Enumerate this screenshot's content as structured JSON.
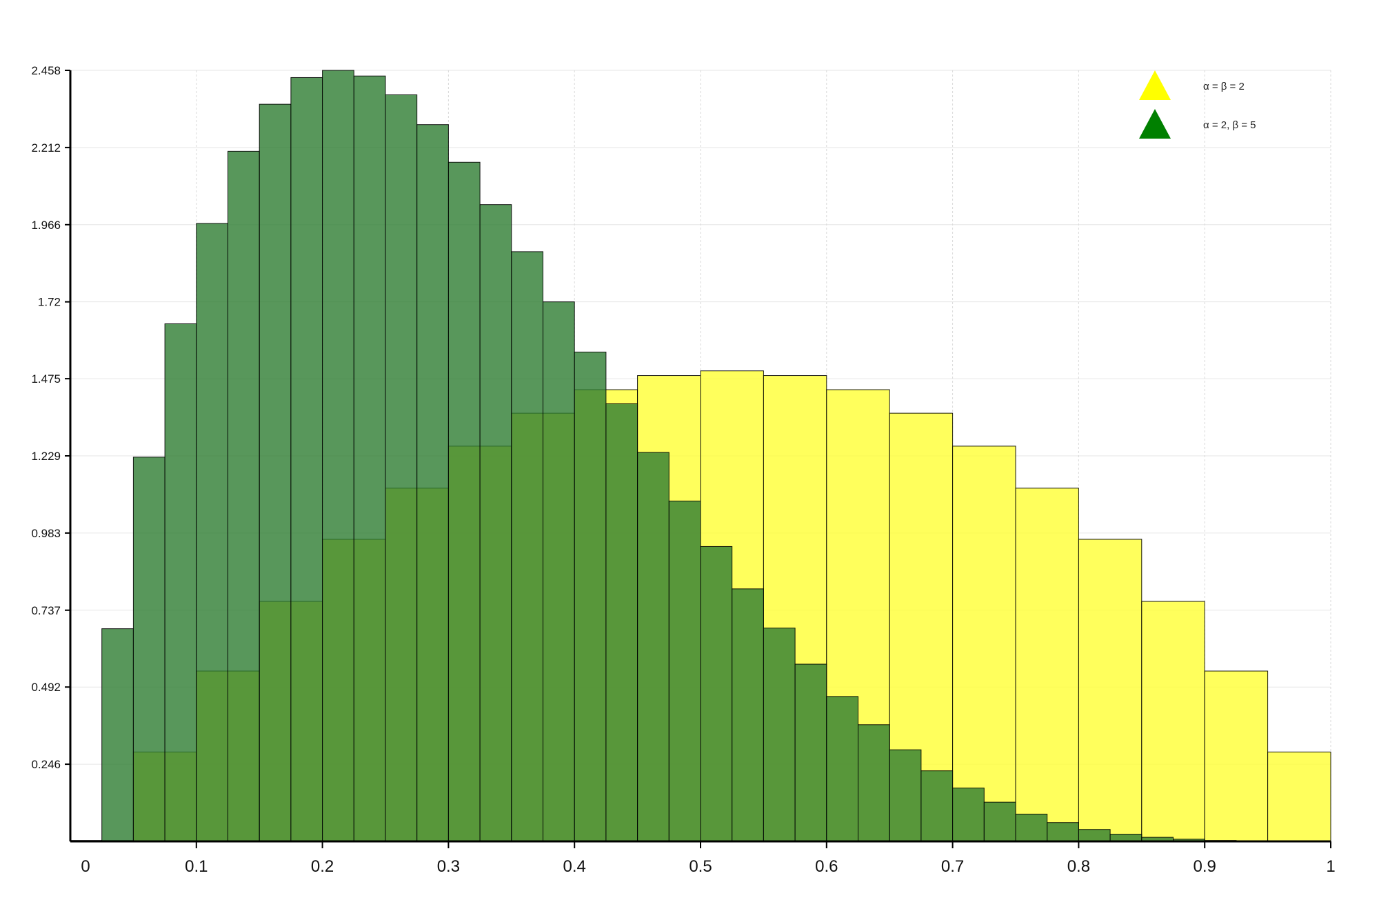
{
  "chart_data": {
    "type": "bar",
    "title": "",
    "xlabel": "",
    "ylabel": "",
    "xlim": [
      0,
      1
    ],
    "ylim": [
      0,
      2.458
    ],
    "grid": true,
    "legend_position": "top-right",
    "x_ticks": [
      {
        "value": 0,
        "label": "0"
      },
      {
        "value": 0.1,
        "label": "0.1"
      },
      {
        "value": 0.2,
        "label": "0.2"
      },
      {
        "value": 0.3,
        "label": "0.3"
      },
      {
        "value": 0.4,
        "label": "0.4"
      },
      {
        "value": 0.5,
        "label": "0.5"
      },
      {
        "value": 0.6,
        "label": "0.6"
      },
      {
        "value": 0.7,
        "label": "0.7"
      },
      {
        "value": 0.8,
        "label": "0.8"
      },
      {
        "value": 0.9,
        "label": "0.9"
      },
      {
        "value": 1,
        "label": "1"
      }
    ],
    "y_ticks": [
      {
        "value": 0.246,
        "label": "0.246"
      },
      {
        "value": 0.492,
        "label": "0.492"
      },
      {
        "value": 0.737,
        "label": "0.737"
      },
      {
        "value": 0.983,
        "label": "0.983"
      },
      {
        "value": 1.229,
        "label": "1.229"
      },
      {
        "value": 1.475,
        "label": "1.475"
      },
      {
        "value": 1.72,
        "label": "1.72"
      },
      {
        "value": 1.966,
        "label": "1.966"
      },
      {
        "value": 2.212,
        "label": "2.212"
      },
      {
        "value": 2.458,
        "label": "2.458"
      }
    ],
    "series": [
      {
        "name": "α = β = 2",
        "color": "#ffff33",
        "legend_color": "#ffff00",
        "opacity": 0.8,
        "bins": [
          {
            "x0": 0.0,
            "x1": 0.05,
            "y": 0.003
          },
          {
            "x0": 0.05,
            "x1": 0.1,
            "y": 0.285
          },
          {
            "x0": 0.1,
            "x1": 0.15,
            "y": 0.543
          },
          {
            "x0": 0.15,
            "x1": 0.2,
            "y": 0.765
          },
          {
            "x0": 0.2,
            "x1": 0.25,
            "y": 0.963
          },
          {
            "x0": 0.25,
            "x1": 0.3,
            "y": 1.126
          },
          {
            "x0": 0.3,
            "x1": 0.35,
            "y": 1.26
          },
          {
            "x0": 0.35,
            "x1": 0.4,
            "y": 1.365
          },
          {
            "x0": 0.4,
            "x1": 0.45,
            "y": 1.44
          },
          {
            "x0": 0.45,
            "x1": 0.5,
            "y": 1.485
          },
          {
            "x0": 0.5,
            "x1": 0.55,
            "y": 1.5
          },
          {
            "x0": 0.55,
            "x1": 0.6,
            "y": 1.485
          },
          {
            "x0": 0.6,
            "x1": 0.65,
            "y": 1.44
          },
          {
            "x0": 0.65,
            "x1": 0.7,
            "y": 1.365
          },
          {
            "x0": 0.7,
            "x1": 0.75,
            "y": 1.26
          },
          {
            "x0": 0.75,
            "x1": 0.8,
            "y": 1.126
          },
          {
            "x0": 0.8,
            "x1": 0.85,
            "y": 0.963
          },
          {
            "x0": 0.85,
            "x1": 0.9,
            "y": 0.765
          },
          {
            "x0": 0.9,
            "x1": 0.95,
            "y": 0.543
          },
          {
            "x0": 0.95,
            "x1": 1.0,
            "y": 0.285
          }
        ]
      },
      {
        "name": "α = 2, β = 5",
        "color": "#2e7d32",
        "legend_color": "#008000",
        "opacity": 0.8,
        "bins": [
          {
            "x0": 0.025,
            "x1": 0.05,
            "y": 0.678
          },
          {
            "x0": 0.05,
            "x1": 0.075,
            "y": 1.225
          },
          {
            "x0": 0.075,
            "x1": 0.1,
            "y": 1.65
          },
          {
            "x0": 0.1,
            "x1": 0.125,
            "y": 1.97
          },
          {
            "x0": 0.125,
            "x1": 0.15,
            "y": 2.2
          },
          {
            "x0": 0.15,
            "x1": 0.175,
            "y": 2.35
          },
          {
            "x0": 0.175,
            "x1": 0.2,
            "y": 2.435
          },
          {
            "x0": 0.2,
            "x1": 0.225,
            "y": 2.458
          },
          {
            "x0": 0.225,
            "x1": 0.25,
            "y": 2.44
          },
          {
            "x0": 0.25,
            "x1": 0.275,
            "y": 2.38
          },
          {
            "x0": 0.275,
            "x1": 0.3,
            "y": 2.285
          },
          {
            "x0": 0.3,
            "x1": 0.325,
            "y": 2.165
          },
          {
            "x0": 0.325,
            "x1": 0.35,
            "y": 2.03
          },
          {
            "x0": 0.35,
            "x1": 0.375,
            "y": 1.88
          },
          {
            "x0": 0.375,
            "x1": 0.4,
            "y": 1.72
          },
          {
            "x0": 0.4,
            "x1": 0.425,
            "y": 1.56
          },
          {
            "x0": 0.425,
            "x1": 0.45,
            "y": 1.395
          },
          {
            "x0": 0.45,
            "x1": 0.475,
            "y": 1.24
          },
          {
            "x0": 0.475,
            "x1": 0.5,
            "y": 1.085
          },
          {
            "x0": 0.5,
            "x1": 0.525,
            "y": 0.94
          },
          {
            "x0": 0.525,
            "x1": 0.55,
            "y": 0.805
          },
          {
            "x0": 0.55,
            "x1": 0.575,
            "y": 0.68
          },
          {
            "x0": 0.575,
            "x1": 0.6,
            "y": 0.565
          },
          {
            "x0": 0.6,
            "x1": 0.625,
            "y": 0.462
          },
          {
            "x0": 0.625,
            "x1": 0.65,
            "y": 0.372
          },
          {
            "x0": 0.65,
            "x1": 0.675,
            "y": 0.292
          },
          {
            "x0": 0.675,
            "x1": 0.7,
            "y": 0.225
          },
          {
            "x0": 0.7,
            "x1": 0.725,
            "y": 0.17
          },
          {
            "x0": 0.725,
            "x1": 0.75,
            "y": 0.125
          },
          {
            "x0": 0.75,
            "x1": 0.775,
            "y": 0.087
          },
          {
            "x0": 0.775,
            "x1": 0.8,
            "y": 0.06
          },
          {
            "x0": 0.8,
            "x1": 0.825,
            "y": 0.038
          },
          {
            "x0": 0.825,
            "x1": 0.85,
            "y": 0.023
          },
          {
            "x0": 0.85,
            "x1": 0.875,
            "y": 0.013
          },
          {
            "x0": 0.875,
            "x1": 0.9,
            "y": 0.007
          },
          {
            "x0": 0.9,
            "x1": 0.925,
            "y": 0.003
          },
          {
            "x0": 0.925,
            "x1": 0.95,
            "y": 0.001
          }
        ]
      }
    ]
  }
}
